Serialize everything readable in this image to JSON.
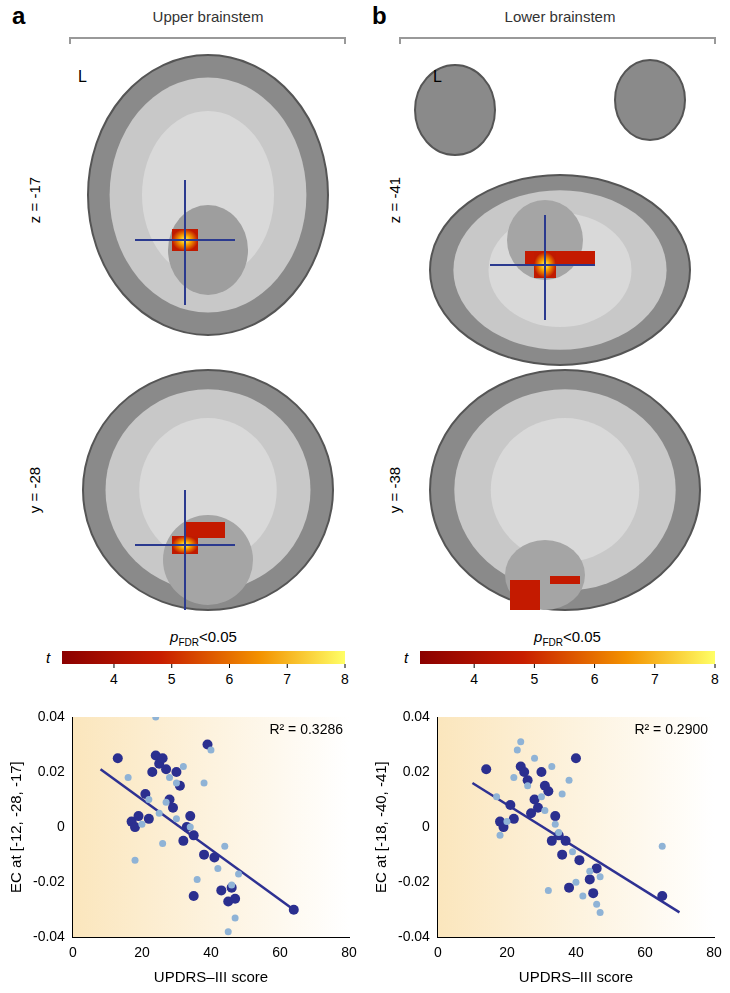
{
  "panels": [
    {
      "label": "a",
      "title": "Upper brainstem",
      "side": "L",
      "slices": [
        "z = -17",
        "y = -28"
      ],
      "colorbar": {
        "title_parts": {
          "main": "p",
          "subscript": "FDR",
          "rest": "<0.05"
        },
        "label": "t",
        "range": [
          3.1,
          8
        ],
        "ticks": [
          4,
          5,
          6,
          7,
          8
        ]
      }
    },
    {
      "label": "b",
      "title": "Lower brainstem",
      "side": "L",
      "slices": [
        "z = -41",
        "y = -38"
      ],
      "colorbar": {
        "title_parts": {
          "main": "p",
          "subscript": "FDR",
          "rest": "<0.05"
        },
        "label": "t",
        "range": [
          3.1,
          8
        ],
        "ticks": [
          4,
          5,
          6,
          7,
          8
        ]
      }
    }
  ],
  "chart_data": [
    {
      "type": "scatter",
      "x_label": "UPDRS–III score",
      "y_label": "EC at [-12, -28, -17]",
      "annotation": "R² = 0.3286",
      "xlim": [
        0,
        80
      ],
      "xticks": [
        0,
        20,
        40,
        60,
        80
      ],
      "ylim": [
        -0.04,
        0.04
      ],
      "yticks": [
        -0.04,
        -0.02,
        0,
        0.02,
        0.04
      ],
      "grid": false,
      "series": [
        {
          "color": "#8fb3d6",
          "marker": "dot",
          "x": [
            16,
            18,
            20,
            22,
            24,
            25,
            27,
            28,
            30,
            32,
            34,
            36,
            38,
            40,
            42,
            44,
            45,
            46,
            47,
            48,
            30,
            26
          ],
          "values": [
            0.018,
            -0.012,
            0.001,
            0.01,
            0.04,
            0.005,
            0.009,
            0.018,
            0.003,
            0.022,
            0.0,
            -0.019,
            0.016,
            0.028,
            -0.015,
            -0.007,
            -0.038,
            -0.021,
            -0.033,
            -0.017,
            0.016,
            -0.006
          ]
        },
        {
          "color": "#2b2f8f",
          "marker": "circle",
          "x": [
            13,
            17,
            18,
            19,
            21,
            22,
            23,
            24,
            25,
            26,
            28,
            29,
            30,
            31,
            33,
            34,
            35,
            35,
            38,
            39,
            41,
            43,
            45,
            46,
            47,
            64,
            32,
            27
          ],
          "values": [
            0.025,
            0.002,
            0.0,
            0.004,
            0.012,
            0.003,
            0.02,
            0.026,
            0.023,
            0.025,
            0.01,
            0.007,
            0.02,
            0.015,
            0.0,
            0.004,
            -0.003,
            -0.025,
            -0.01,
            0.03,
            -0.011,
            -0.023,
            -0.027,
            -0.022,
            -0.026,
            -0.03,
            -0.005,
            0.021
          ]
        },
        {
          "color": "#2e3192",
          "type": "line",
          "line_style": "solid",
          "x": [
            8,
            64
          ],
          "values": [
            0.021,
            -0.03
          ]
        }
      ]
    },
    {
      "type": "scatter",
      "x_label": "UPDRS–III score",
      "y_label": "EC at [-18, -40, -41]",
      "annotation": "R² = 0.2900",
      "xlim": [
        0,
        80
      ],
      "xticks": [
        0,
        20,
        40,
        60,
        80
      ],
      "ylim": [
        -0.04,
        0.04
      ],
      "yticks": [
        -0.04,
        -0.02,
        0,
        0.02,
        0.04
      ],
      "grid": false,
      "series": [
        {
          "color": "#8fb3d6",
          "marker": "dot",
          "x": [
            17,
            18,
            20,
            22,
            23,
            24,
            26,
            28,
            30,
            31,
            33,
            34,
            35,
            36,
            38,
            39,
            40,
            42,
            44,
            46,
            47,
            47,
            65,
            32
          ],
          "values": [
            0.011,
            -0.003,
            0.002,
            0.018,
            0.028,
            0.031,
            0.015,
            0.025,
            0.011,
            0.006,
            0.022,
            0.001,
            -0.002,
            0.012,
            0.017,
            -0.009,
            -0.02,
            -0.025,
            -0.016,
            -0.028,
            -0.031,
            -0.018,
            -0.007,
            -0.023
          ]
        },
        {
          "color": "#2b2f8f",
          "marker": "circle",
          "x": [
            14,
            18,
            19,
            21,
            22,
            24,
            25,
            26,
            27,
            28,
            29,
            30,
            32,
            33,
            34,
            35,
            36,
            38,
            40,
            41,
            44,
            45,
            46,
            65,
            31,
            37
          ],
          "values": [
            0.021,
            0.002,
            0.0,
            0.008,
            0.003,
            0.022,
            0.02,
            0.017,
            0.005,
            0.01,
            0.007,
            0.02,
            0.013,
            -0.005,
            0.004,
            -0.003,
            -0.01,
            -0.022,
            0.025,
            -0.012,
            -0.019,
            -0.024,
            -0.015,
            -0.025,
            0.015,
            -0.005
          ]
        },
        {
          "color": "#2e3192",
          "type": "line",
          "line_style": "solid",
          "x": [
            10,
            70
          ],
          "values": [
            0.016,
            -0.031
          ]
        }
      ]
    }
  ]
}
